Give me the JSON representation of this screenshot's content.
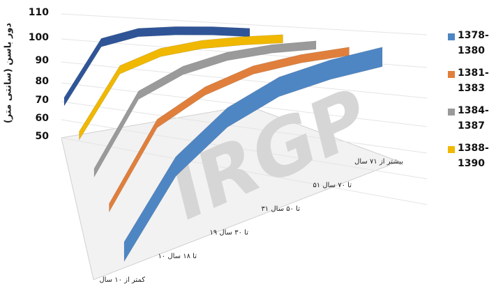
{
  "chart_data": {
    "type": "area",
    "view": "3d-perspective",
    "ylabel": "دور باسن (سانتی متر)",
    "ylim": [
      50,
      110
    ],
    "y_ticks": [
      "50",
      "60",
      "70",
      "80",
      "90",
      "100",
      "110"
    ],
    "categories": [
      "کمتر از ۱۰ سال",
      "۱۰ تا ۱۸ سال",
      "۱۹ تا ۳۰ سال",
      "۳۱ تا ۵۰ سال",
      "۵۱ تا ۷۰ سال",
      "بیشتر از ۷۱ سال"
    ],
    "series": [
      {
        "name": "1378-1380",
        "color": "#4e86c4",
        "values": [
          62,
          85,
          97,
          103,
          104,
          103
        ]
      },
      {
        "name": "1381-1383",
        "color": "#e07f3c",
        "values": [
          64,
          90,
          98,
          102,
          102,
          100
        ]
      },
      {
        "name": "1384-1387",
        "color": "#9a9a9a",
        "values": [
          65,
          92,
          99,
          102,
          102,
          100
        ]
      },
      {
        "name": "1388-1390",
        "color": "#f0b800",
        "values": [
          67,
          93,
          99,
          101,
          101,
          100
        ]
      },
      {
        "name": "",
        "color": "#2f5597",
        "values": [
          68,
          95,
          100,
          101,
          101,
          100
        ]
      }
    ],
    "legend_position": "right",
    "grid": true,
    "watermark": "IRGP"
  },
  "legend": [
    {
      "label": "1378-1380",
      "color": "#4e86c4"
    },
    {
      "label": "1381-1383",
      "color": "#e07f3c"
    },
    {
      "label": "1384-1387",
      "color": "#9a9a9a"
    },
    {
      "label": "1388-1390",
      "color": "#f0b800"
    }
  ]
}
